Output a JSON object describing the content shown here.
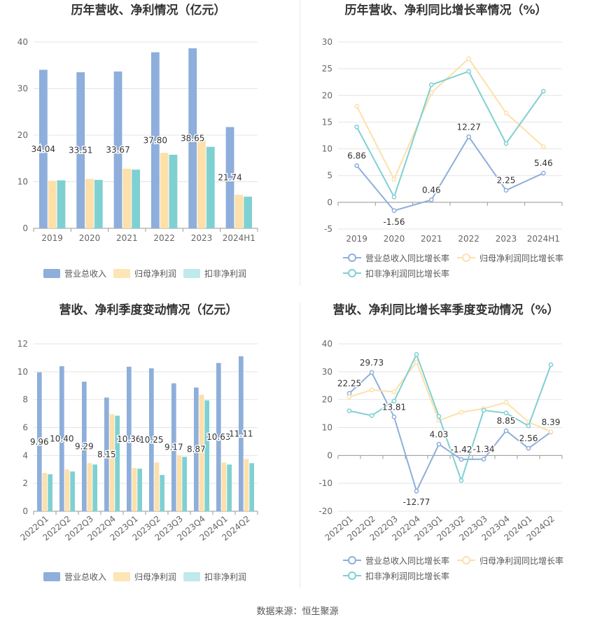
{
  "source": "数据来源：恒生聚源",
  "colors": {
    "revenue": "#8eaedb",
    "net_profit": "#fde0aa",
    "deducted_profit": "#7fd0d2",
    "revenue_light": "#c8d7ee",
    "net_profit_light": "#fde5b6",
    "deducted_light": "#bfe9ea",
    "axis_text": "#666666",
    "grid": "#e4e4e4",
    "label": "#333333"
  },
  "chart_data": [
    {
      "type": "bar",
      "title": "历年营收、净利情况（亿元）",
      "categories": [
        "2019",
        "2020",
        "2021",
        "2022",
        "2023",
        "2024H1"
      ],
      "ylim": [
        0,
        40
      ],
      "yticks": [
        0,
        10,
        20,
        30,
        40
      ],
      "grid": true,
      "legend_position": "bottom",
      "series": [
        {
          "name": "营业总收入",
          "values": [
            34.04,
            33.51,
            33.67,
            37.8,
            38.65,
            21.74
          ],
          "labels": [
            "34.04",
            "33.51",
            "33.67",
            "37.80",
            "38.65",
            "21.74"
          ]
        },
        {
          "name": "归母净利润",
          "values": [
            10.2,
            10.6,
            12.8,
            16.2,
            18.9,
            7.2
          ]
        },
        {
          "name": "扣非净利润",
          "values": [
            10.3,
            10.4,
            12.6,
            15.8,
            17.5,
            6.8
          ]
        }
      ]
    },
    {
      "type": "line",
      "title": "历年营收、净利同比增长率情况（%）",
      "categories": [
        "2019",
        "2020",
        "2021",
        "2022",
        "2023",
        "2024H1"
      ],
      "ylim": [
        -5,
        30
      ],
      "yticks": [
        -5,
        0,
        5,
        10,
        15,
        20,
        25,
        30
      ],
      "grid": true,
      "legend_position": "bottom",
      "series": [
        {
          "name": "营业总收入同比增长率",
          "values": [
            6.86,
            -1.56,
            0.46,
            12.27,
            2.25,
            5.46
          ],
          "labels": [
            "6.86",
            "-1.56",
            "0.46",
            "12.27",
            "2.25",
            "5.46"
          ]
        },
        {
          "name": "归母净利润同比增长率",
          "values": [
            18.0,
            4.3,
            20.5,
            26.9,
            16.7,
            10.4
          ]
        },
        {
          "name": "扣非净利润同比增长率",
          "values": [
            14.1,
            1.0,
            22.0,
            24.5,
            11.0,
            20.8
          ]
        }
      ]
    },
    {
      "type": "bar",
      "title": "营收、净利季度变动情况（亿元）",
      "categories": [
        "2022Q1",
        "2022Q2",
        "2022Q3",
        "2022Q4",
        "2023Q1",
        "2023Q2",
        "2023Q3",
        "2023Q4",
        "2024Q1",
        "2024Q2"
      ],
      "ylim": [
        0,
        12
      ],
      "yticks": [
        0,
        2,
        4,
        6,
        8,
        10,
        12
      ],
      "grid": true,
      "legend_position": "bottom",
      "series": [
        {
          "name": "营业总收入",
          "values": [
            9.96,
            10.4,
            9.29,
            8.15,
            10.36,
            10.25,
            9.17,
            8.87,
            10.63,
            11.11
          ],
          "labels": [
            "9.96",
            "10.40",
            "9.29",
            "8.15",
            "10.36",
            "10.25",
            "9.17",
            "8.87",
            "10.63",
            "11.11"
          ]
        },
        {
          "name": "归母净利润",
          "values": [
            2.75,
            3.0,
            3.45,
            6.95,
            3.1,
            3.5,
            4.0,
            8.35,
            3.5,
            3.75
          ]
        },
        {
          "name": "扣非净利润",
          "values": [
            2.65,
            2.85,
            3.35,
            6.85,
            3.05,
            2.6,
            3.9,
            7.95,
            3.35,
            3.45
          ]
        }
      ]
    },
    {
      "type": "line",
      "title": "营收、净利同比增长率季度变动情况（%）",
      "categories": [
        "2022Q1",
        "2022Q2",
        "2022Q3",
        "2022Q4",
        "2023Q1",
        "2023Q2",
        "2023Q3",
        "2023Q4",
        "2024Q1",
        "2024Q2"
      ],
      "ylim": [
        -20,
        40
      ],
      "yticks": [
        -20,
        -10,
        0,
        10,
        20,
        30,
        40
      ],
      "grid": true,
      "legend_position": "bottom",
      "series": [
        {
          "name": "营业总收入同比增长率",
          "values": [
            22.25,
            29.73,
            13.81,
            -12.77,
            4.03,
            -1.42,
            -1.34,
            8.85,
            2.56,
            8.39
          ],
          "labels": [
            "22.25",
            "29.73",
            "13.81",
            "-12.77",
            "4.03",
            "-1.42",
            "-1.34",
            "8.85",
            "2.56",
            "8.39"
          ]
        },
        {
          "name": "归母净利润同比增长率",
          "values": [
            21.0,
            23.5,
            22.8,
            33.5,
            12.5,
            15.5,
            16.8,
            19.0,
            12.0,
            8.5
          ]
        },
        {
          "name": "扣非净利润同比增长率",
          "values": [
            16.0,
            14.3,
            19.5,
            36.2,
            14.0,
            -9.0,
            16.2,
            15.2,
            10.6,
            32.5
          ]
        }
      ]
    }
  ]
}
